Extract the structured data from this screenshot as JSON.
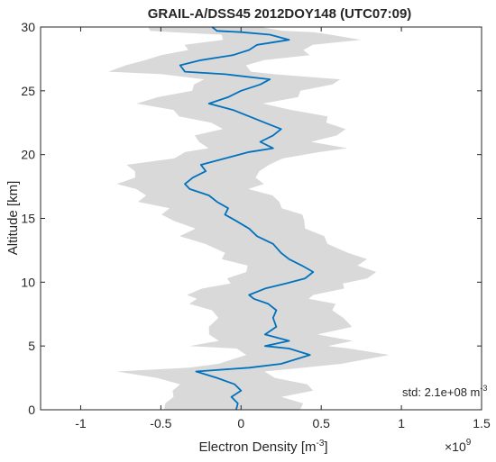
{
  "chart_data": {
    "type": "line",
    "title": "GRAIL-A/DSS45 2012DOY148 (UTC07:09)",
    "xlabel": "Electron Density [m",
    "xlabel_sup": "-3",
    "xlabel_end": "]",
    "ylabel": "Altitude [km]",
    "x_multiplier_base": "×10",
    "x_multiplier_exp": "9",
    "xlim": [
      -1.25,
      1.5
    ],
    "ylim": [
      0,
      30
    ],
    "xticks": [
      -1,
      -0.5,
      0,
      0.5,
      1,
      1.5
    ],
    "xtick_labels": [
      "-1",
      "-0.5",
      "0",
      "0.5",
      "1",
      "1.5"
    ],
    "yticks": [
      0,
      5,
      10,
      15,
      20,
      25,
      30
    ],
    "ytick_labels": [
      "0",
      "5",
      "10",
      "15",
      "20",
      "25",
      "30"
    ],
    "grid": false,
    "colors": {
      "profile": "#0072BD",
      "band": "#d9d9d9",
      "axes": "#262626"
    },
    "annotation": {
      "text": "std: 2.1e+08 m",
      "sup": "-3"
    },
    "std": 0.21,
    "series": [
      {
        "points": [
          [
            -0.03,
            0.0
          ],
          [
            -0.02,
            0.5
          ],
          [
            -0.06,
            1.0
          ],
          [
            0.0,
            1.5
          ],
          [
            -0.04,
            2.0
          ],
          [
            -0.15,
            2.5
          ],
          [
            -0.28,
            3.0
          ],
          [
            0.05,
            3.3
          ],
          [
            0.25,
            3.6
          ],
          [
            0.43,
            4.3
          ],
          [
            0.3,
            4.8
          ],
          [
            0.15,
            5.0
          ],
          [
            0.3,
            5.4
          ],
          [
            0.15,
            5.9
          ],
          [
            0.22,
            6.5
          ],
          [
            0.2,
            7.2
          ],
          [
            0.22,
            7.8
          ],
          [
            0.17,
            8.3
          ],
          [
            0.08,
            8.7
          ],
          [
            0.05,
            9.0
          ],
          [
            0.15,
            9.5
          ],
          [
            0.28,
            9.9
          ],
          [
            0.4,
            10.3
          ],
          [
            0.45,
            10.8
          ],
          [
            0.38,
            11.3
          ],
          [
            0.3,
            11.8
          ],
          [
            0.25,
            12.3
          ],
          [
            0.2,
            13.0
          ],
          [
            0.1,
            13.6
          ],
          [
            0.05,
            14.2
          ],
          [
            -0.03,
            14.8
          ],
          [
            -0.1,
            15.3
          ],
          [
            -0.08,
            15.8
          ],
          [
            -0.15,
            16.3
          ],
          [
            -0.2,
            16.8
          ],
          [
            -0.32,
            17.3
          ],
          [
            -0.35,
            17.7
          ],
          [
            -0.3,
            18.2
          ],
          [
            -0.22,
            18.7
          ],
          [
            -0.25,
            19.2
          ],
          [
            -0.1,
            19.7
          ],
          [
            0.05,
            20.2
          ],
          [
            0.2,
            20.5
          ],
          [
            0.12,
            21.0
          ],
          [
            0.2,
            21.5
          ],
          [
            0.25,
            22.0
          ],
          [
            0.15,
            22.5
          ],
          [
            0.05,
            23.0
          ],
          [
            -0.05,
            23.5
          ],
          [
            -0.2,
            24.0
          ],
          [
            -0.08,
            24.5
          ],
          [
            0.0,
            25.0
          ],
          [
            0.12,
            25.5
          ],
          [
            0.18,
            25.9
          ],
          [
            -0.1,
            26.3
          ],
          [
            -0.35,
            26.5
          ],
          [
            -0.38,
            27.0
          ],
          [
            -0.25,
            27.4
          ],
          [
            -0.05,
            27.8
          ],
          [
            0.05,
            28.2
          ],
          [
            0.1,
            28.6
          ],
          [
            0.3,
            29.0
          ],
          [
            0.18,
            29.4
          ],
          [
            0.0,
            29.6
          ],
          [
            -0.15,
            29.7
          ],
          [
            -0.18,
            30.0
          ]
        ]
      }
    ]
  }
}
